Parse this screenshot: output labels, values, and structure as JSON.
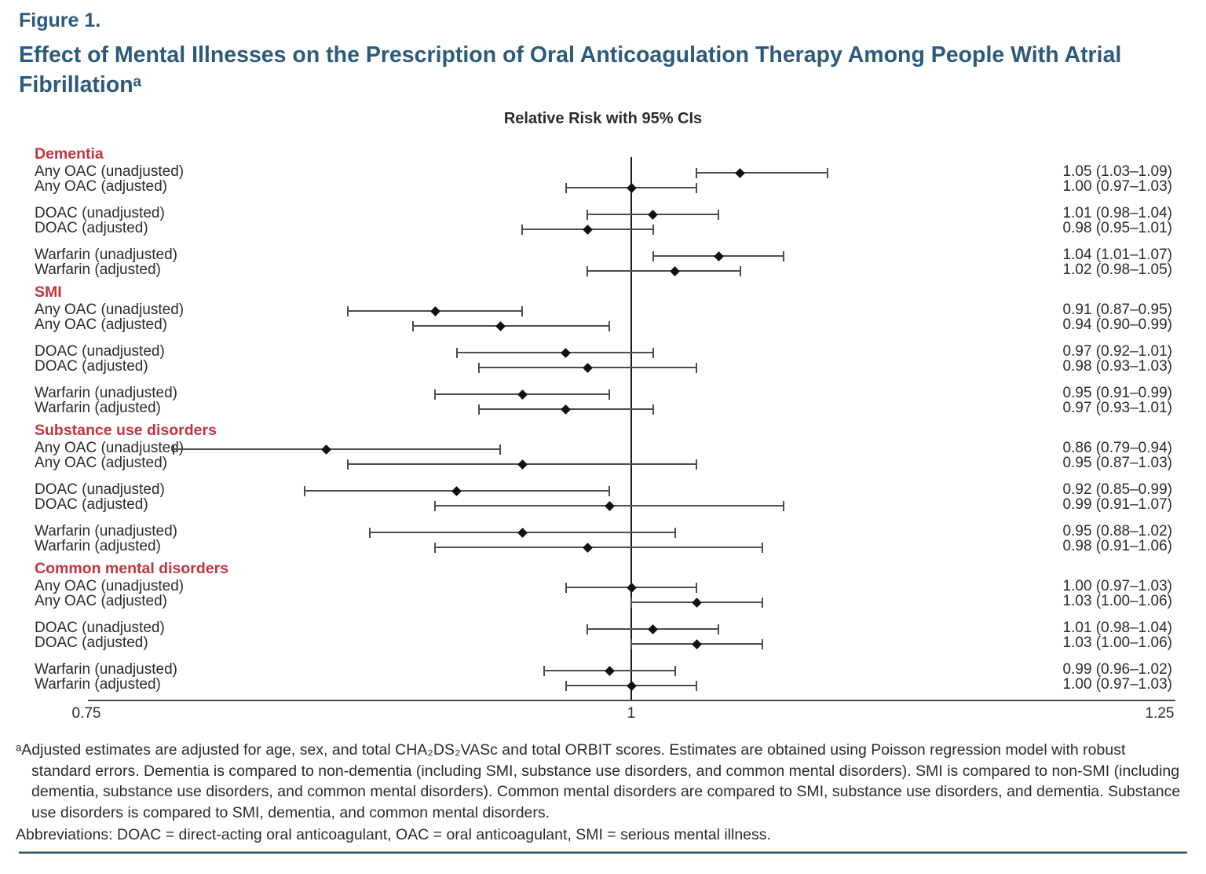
{
  "figure": {
    "label": "Figure 1.",
    "title": "Effect of Mental Illnesses on the Prescription of Oral Anticoagulation Therapy Among People With Atrial Fibrillationᵃ"
  },
  "colors": {
    "title_blue": "#2c5a7c",
    "group_header_red": "#c4343e",
    "ci_line_gray": "#4d4d4d",
    "marker_black": "#111111",
    "bottom_rule_blue": "#2e4e6c"
  },
  "chart_data": {
    "type": "forest",
    "title": "Relative Risk with 95% CIs",
    "x_axis": {
      "range": [
        0.75,
        1.25
      ],
      "ticks": [
        0.75,
        1,
        1.25
      ],
      "tick_labels": [
        "0.75",
        "1",
        "1.25"
      ],
      "reference_line": 1,
      "grid": false
    },
    "groups": [
      {
        "name": "Dementia",
        "rows": [
          {
            "label": "Any OAC (unadjusted)",
            "rr": 1.05,
            "lo": 1.03,
            "hi": 1.09,
            "value_label": "1.05 (1.03–1.09)"
          },
          {
            "label": "Any OAC (adjusted)",
            "rr": 1.0,
            "lo": 0.97,
            "hi": 1.03,
            "value_label": "1.00 (0.97–1.03)"
          },
          {
            "label": "DOAC (unadjusted)",
            "rr": 1.01,
            "lo": 0.98,
            "hi": 1.04,
            "value_label": "1.01 (0.98–1.04)"
          },
          {
            "label": "DOAC (adjusted)",
            "rr": 0.98,
            "lo": 0.95,
            "hi": 1.01,
            "value_label": "0.98 (0.95–1.01)"
          },
          {
            "label": "Warfarin (unadjusted)",
            "rr": 1.04,
            "lo": 1.01,
            "hi": 1.07,
            "value_label": "1.04 (1.01–1.07)"
          },
          {
            "label": "Warfarin (adjusted)",
            "rr": 1.02,
            "lo": 0.98,
            "hi": 1.05,
            "value_label": "1.02 (0.98–1.05)"
          }
        ]
      },
      {
        "name": "SMI",
        "rows": [
          {
            "label": "Any OAC (unadjusted)",
            "rr": 0.91,
            "lo": 0.87,
            "hi": 0.95,
            "value_label": "0.91 (0.87–0.95)"
          },
          {
            "label": "Any OAC (adjusted)",
            "rr": 0.94,
            "lo": 0.9,
            "hi": 0.99,
            "value_label": "0.94 (0.90–0.99)"
          },
          {
            "label": "DOAC (unadjusted)",
            "rr": 0.97,
            "lo": 0.92,
            "hi": 1.01,
            "value_label": "0.97 (0.92–1.01)"
          },
          {
            "label": "DOAC (adjusted)",
            "rr": 0.98,
            "lo": 0.93,
            "hi": 1.03,
            "value_label": "0.98 (0.93–1.03)"
          },
          {
            "label": "Warfarin (unadjusted)",
            "rr": 0.95,
            "lo": 0.91,
            "hi": 0.99,
            "value_label": "0.95 (0.91–0.99)"
          },
          {
            "label": "Warfarin (adjusted)",
            "rr": 0.97,
            "lo": 0.93,
            "hi": 1.01,
            "value_label": "0.97 (0.93–1.01)"
          }
        ]
      },
      {
        "name": "Substance use disorders",
        "rows": [
          {
            "label": "Any OAC (unadjusted)",
            "rr": 0.86,
            "lo": 0.79,
            "hi": 0.94,
            "value_label": "0.86 (0.79–0.94)"
          },
          {
            "label": "Any OAC (adjusted)",
            "rr": 0.95,
            "lo": 0.87,
            "hi": 1.03,
            "value_label": "0.95 (0.87–1.03)"
          },
          {
            "label": "DOAC (unadjusted)",
            "rr": 0.92,
            "lo": 0.85,
            "hi": 0.99,
            "value_label": "0.92 (0.85–0.99)"
          },
          {
            "label": "DOAC (adjusted)",
            "rr": 0.99,
            "lo": 0.91,
            "hi": 1.07,
            "value_label": "0.99 (0.91–1.07)"
          },
          {
            "label": "Warfarin (unadjusted)",
            "rr": 0.95,
            "lo": 0.88,
            "hi": 1.02,
            "value_label": "0.95 (0.88–1.02)"
          },
          {
            "label": "Warfarin (adjusted)",
            "rr": 0.98,
            "lo": 0.91,
            "hi": 1.06,
            "value_label": "0.98 (0.91–1.06)"
          }
        ]
      },
      {
        "name": "Common mental disorders",
        "rows": [
          {
            "label": "Any OAC (unadjusted)",
            "rr": 1.0,
            "lo": 0.97,
            "hi": 1.03,
            "value_label": "1.00 (0.97–1.03)"
          },
          {
            "label": "Any OAC (adjusted)",
            "rr": 1.03,
            "lo": 1.0,
            "hi": 1.06,
            "value_label": "1.03 (1.00–1.06)"
          },
          {
            "label": "DOAC (unadjusted)",
            "rr": 1.01,
            "lo": 0.98,
            "hi": 1.04,
            "value_label": "1.01 (0.98–1.04)"
          },
          {
            "label": "DOAC (adjusted)",
            "rr": 1.03,
            "lo": 1.0,
            "hi": 1.06,
            "value_label": "1.03 (1.00–1.06)"
          },
          {
            "label": "Warfarin (unadjusted)",
            "rr": 0.99,
            "lo": 0.96,
            "hi": 1.02,
            "value_label": "0.99 (0.96–1.02)"
          },
          {
            "label": "Warfarin (adjusted)",
            "rr": 1.0,
            "lo": 0.97,
            "hi": 1.03,
            "value_label": "1.00 (0.97–1.03)"
          }
        ]
      }
    ]
  },
  "footnote": {
    "adjusted_note": "ᵃAdjusted estimates are adjusted for age, sex, and total CHA₂DS₂VASc and total ORBIT scores. Estimates are obtained using Poisson regression model with robust standard errors. Dementia is compared to non-dementia (including SMI, substance use disorders, and common mental disorders). SMI is compared to non-SMI (including dementia, substance use disorders, and common mental disorders). Common mental disorders are compared to SMI, substance use disorders, and dementia. Substance use disorders is compared to SMI, dementia, and common mental disorders.",
    "abbreviations": "Abbreviations: DOAC = direct-acting oral anticoagulant, OAC = oral anticoagulant, SMI = serious mental illness."
  }
}
